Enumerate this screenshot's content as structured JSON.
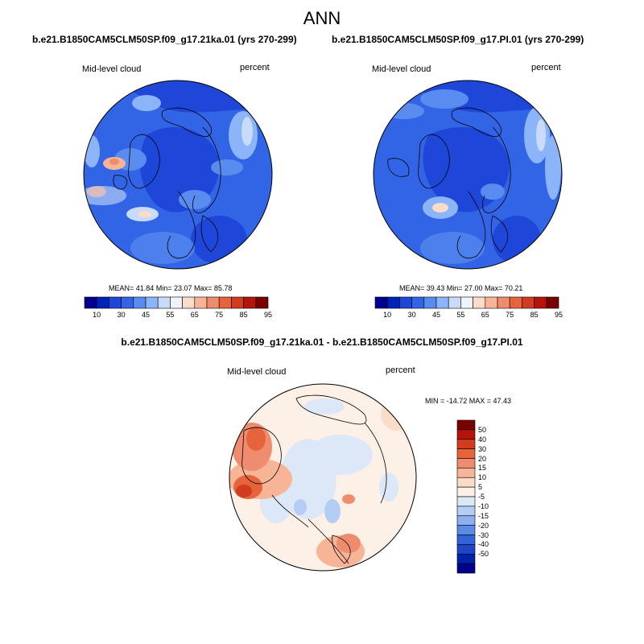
{
  "main_title": "ANN",
  "panels": [
    {
      "title": "b.e21.B1850CAM5CLM50SP.f09_g17.21ka.01 (yrs 270-299)",
      "left_label": "Mid-level cloud",
      "right_label": "percent",
      "stats": "MEAN=  41.84  Min=  23.07  Max=  85.78",
      "mean": 41.84,
      "min": 23.07,
      "max": 85.78
    },
    {
      "title": "b.e21.B1850CAM5CLM50SP.f09_g17.PI.01 (yrs 270-299)",
      "left_label": "Mid-level cloud",
      "right_label": "percent",
      "stats": "MEAN=  39.43  Min=  27.00  Max=  70.21",
      "mean": 39.43,
      "min": 27.0,
      "max": 70.21
    }
  ],
  "abs_colorbar": {
    "colors": [
      "#00008c",
      "#0022b8",
      "#1e46d8",
      "#3264e6",
      "#5a8cf0",
      "#8cb4f8",
      "#c8dcfa",
      "#f0f4fa",
      "#fadcc8",
      "#f8b496",
      "#f08c6e",
      "#e6643c",
      "#d23c1e",
      "#b4140a",
      "#7a0000"
    ],
    "labels": [
      "10",
      "30",
      "45",
      "55",
      "65",
      "75",
      "85",
      "95"
    ]
  },
  "diff_panel": {
    "title": "b.e21.B1850CAM5CLM50SP.f09_g17.21ka.01 - b.e21.B1850CAM5CLM50SP.f09_g17.PI.01",
    "left_label": "Mid-level cloud",
    "right_label": "percent",
    "minmax": "MIN = -14.72 MAX =  47.43",
    "min": -14.72,
    "max": 47.43
  },
  "diff_colorbar": {
    "colors": [
      "#7a0000",
      "#b4140a",
      "#d23c1e",
      "#e6643c",
      "#f08c6e",
      "#f8b496",
      "#fadcc8",
      "#fdf0e6",
      "#dce8f8",
      "#b4cdf4",
      "#8cb0f0",
      "#5a8ce6",
      "#3264d8",
      "#1e46c8",
      "#0022a8",
      "#00008c"
    ],
    "labels": [
      "50",
      "40",
      "30",
      "20",
      "15",
      "10",
      "5",
      "-5",
      "-10",
      "-15",
      "-20",
      "-30",
      "-40",
      "-50"
    ]
  }
}
